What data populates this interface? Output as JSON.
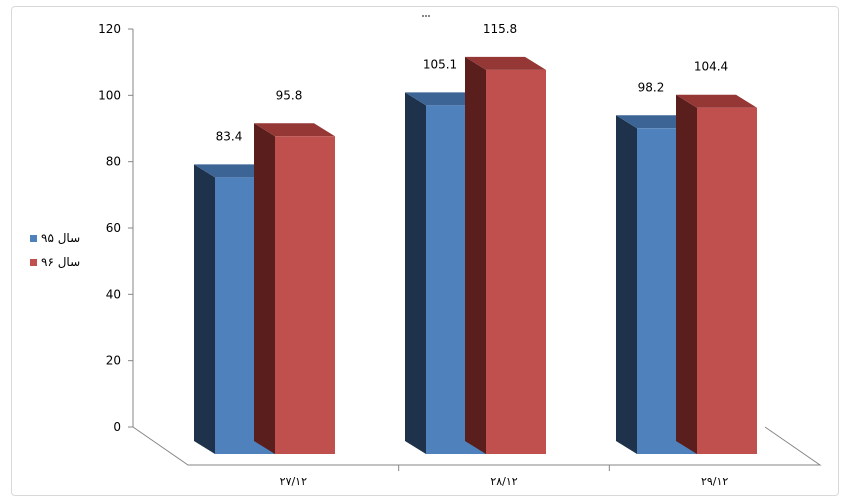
{
  "chart_data": {
    "type": "bar",
    "subtype": "3d-clustered-column",
    "categories": [
      "۲۷/۱۲",
      "۲۸/۱۲",
      "۲۹/۱۲"
    ],
    "series": [
      {
        "name": "سال ۹۵",
        "values": [
          83.4,
          105.1,
          98.2
        ],
        "color": "#4f81bd"
      },
      {
        "name": "سال ۹۶",
        "values": [
          95.8,
          115.8,
          104.4
        ],
        "color": "#c0504d"
      }
    ],
    "yticks": [
      "0",
      "20",
      "40",
      "60",
      "80",
      "100",
      "120"
    ],
    "ylim": [
      0,
      120
    ],
    "data_labels": true,
    "grid": false,
    "legend_position": "left"
  },
  "colors": {
    "series1_front": "#4f81bd",
    "series1_side": "#1f324b",
    "series1_top": "#3c6596",
    "series2_front": "#c0504d",
    "series2_side": "#5a1e1c",
    "series2_top": "#943735",
    "axis": "#868686"
  }
}
